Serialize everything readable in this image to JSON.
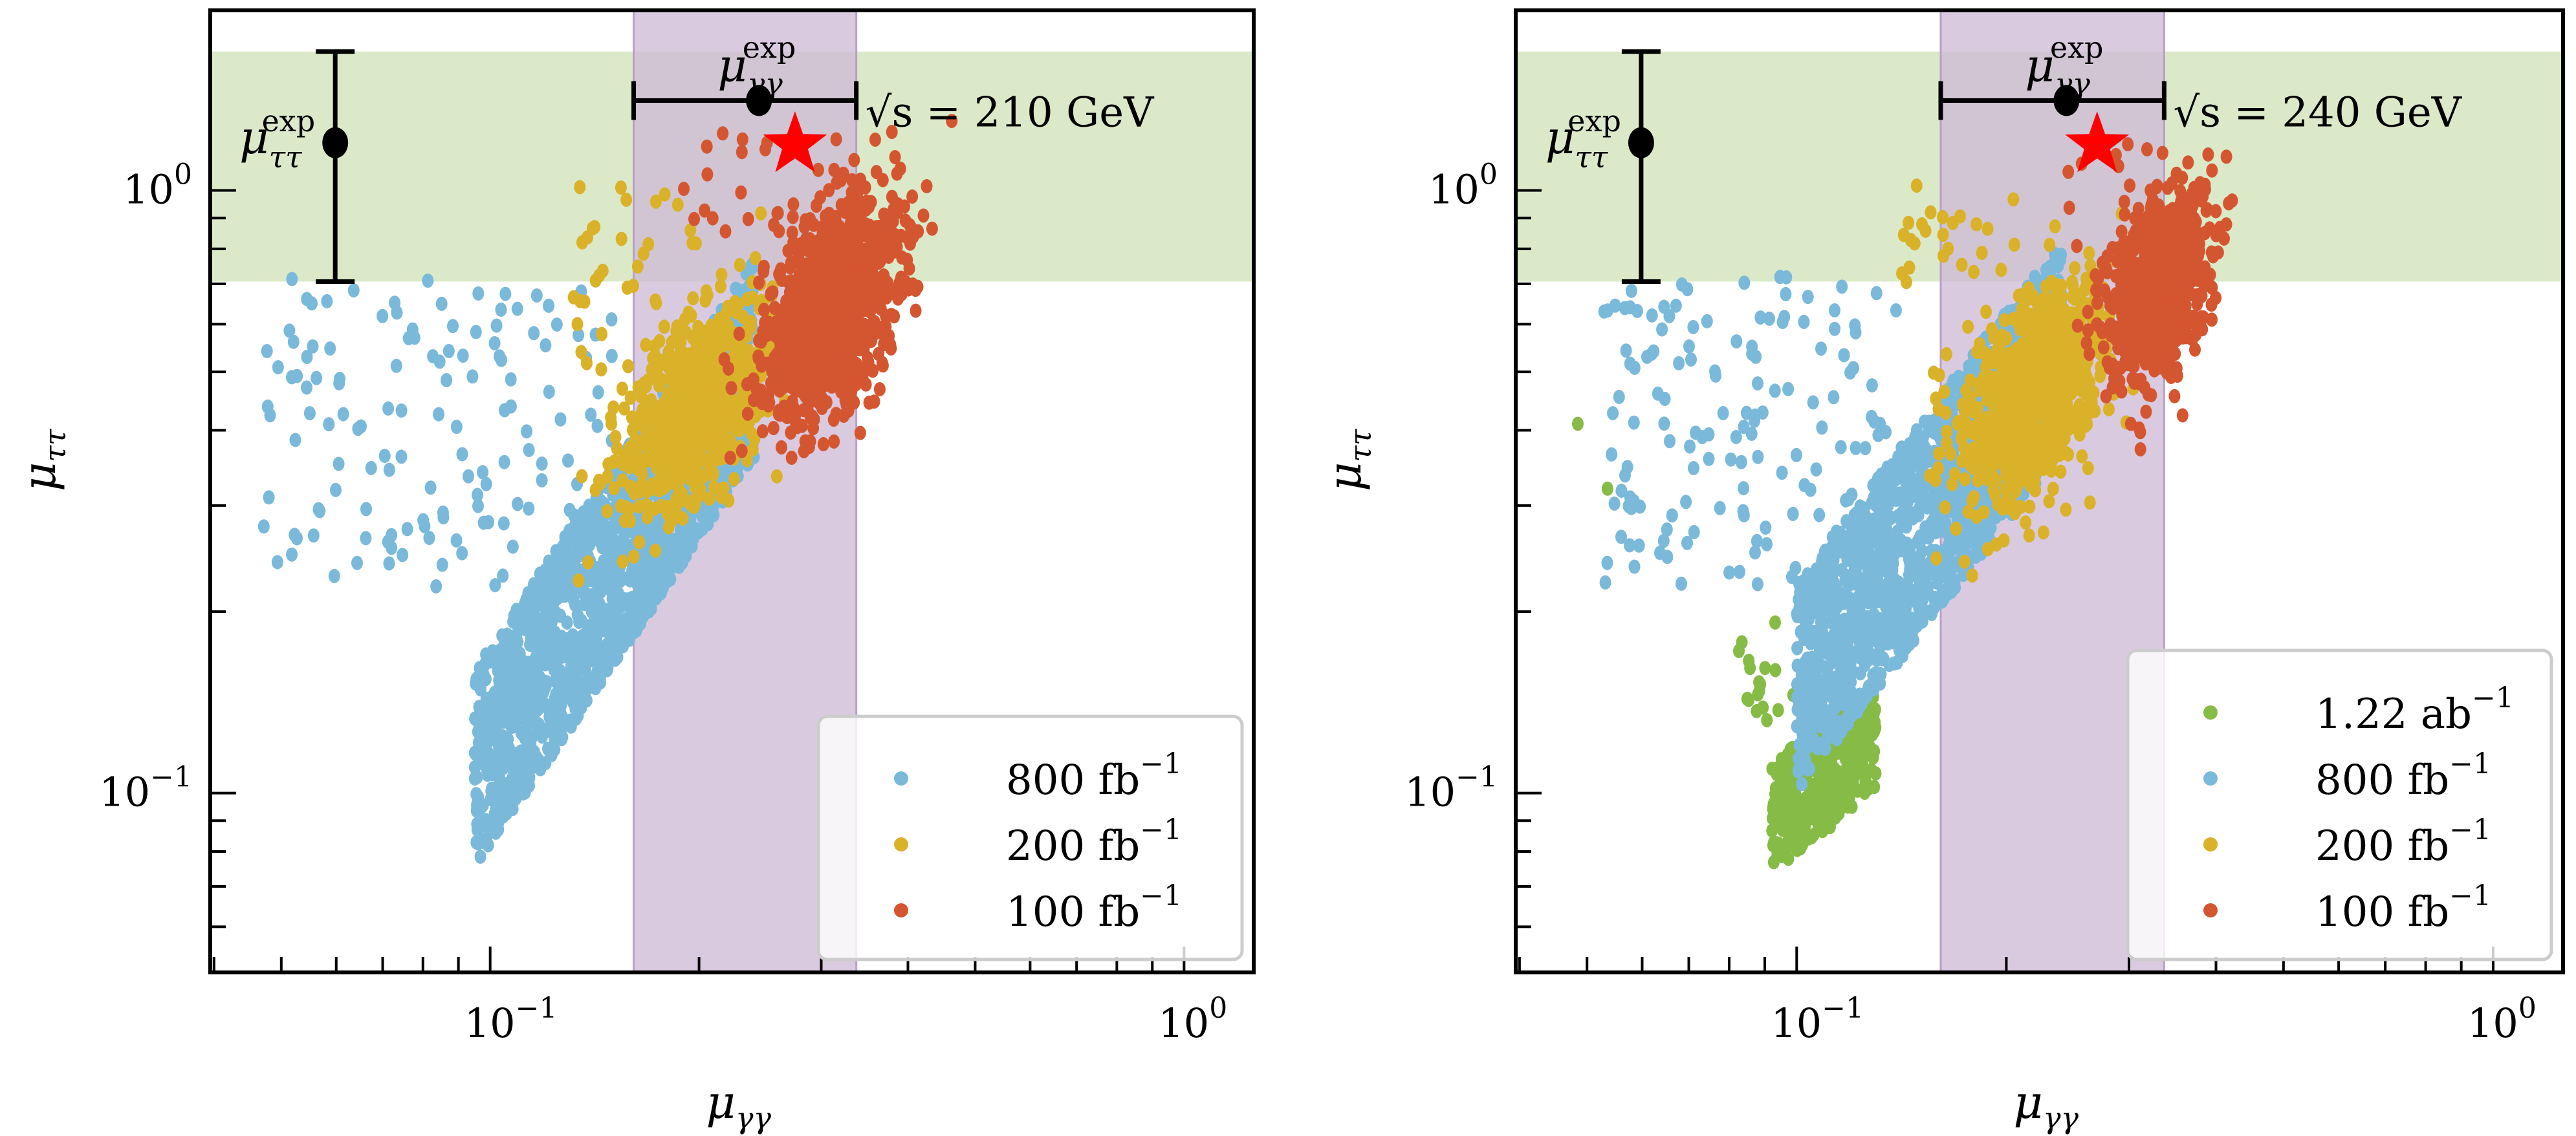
{
  "chart_data": [
    {
      "type": "scatter",
      "panel": "left",
      "xscale": "log",
      "yscale": "log",
      "xlim": [
        0.0395,
        1.26
      ],
      "ylim": [
        0.0504,
        1.99
      ],
      "xlabel": "μ",
      "xlabel_sub": "γγ",
      "ylabel": "μ",
      "ylabel_sub": "ττ",
      "xticks": [
        {
          "value": 0.1,
          "base": "10",
          "exp": "−1"
        },
        {
          "value": 1.0,
          "base": "10",
          "exp": "0"
        }
      ],
      "yticks": [
        {
          "value": 0.1,
          "base": "10",
          "exp": "−1"
        },
        {
          "value": 1.0,
          "base": "10",
          "exp": "0"
        }
      ],
      "annotation": {
        "text": "√s = 210 GeV",
        "root": "√",
        "rest": "s = 210 GeV"
      },
      "bands": {
        "mu_tautau": {
          "ymin": 0.706,
          "ymax": 1.7,
          "color": "#d9e8c6"
        },
        "mu_gammagamma": {
          "xmin": 0.161,
          "xmax": 0.337,
          "color": "#cdb8d6"
        }
      },
      "exp_points": {
        "mu_tautau": {
          "x": 0.0598,
          "y": 1.2,
          "ylo": 0.706,
          "yhi": 1.7,
          "label": "μ",
          "label_sub": "ττ",
          "label_sup": "exp"
        },
        "mu_gammagamma": {
          "x": 0.244,
          "y": 1.41,
          "xlo": 0.161,
          "xhi": 0.337,
          "label": "μ",
          "label_sub": "γγ",
          "label_sup": "exp"
        }
      },
      "star": {
        "x": 0.275,
        "y": 1.19,
        "color": "#ff0000"
      },
      "legend": {
        "placement": "lower-right"
      },
      "series": [
        {
          "name": "800 fb⁻¹",
          "label_num": "800 fb",
          "label_sup": "−1",
          "color": "#7ab9da",
          "clusters": [
            {
              "kind": "band",
              "x_range": [
                0.095,
                0.24
              ],
              "y_at_x": [
                [
                  0.095,
                  0.075
                ],
                [
                  0.24,
                  0.36
                ]
              ],
              "y_spread_dex": 0.33,
              "n": 1600
            },
            {
              "kind": "scatter",
              "x_range": [
                0.047,
                0.15
              ],
              "y_range": [
                0.22,
                0.72
              ],
              "n": 140
            }
          ]
        },
        {
          "name": "200 fb⁻¹",
          "label_num": "200 fb",
          "label_sup": "−1",
          "color": "#dab22a",
          "clusters": [
            {
              "kind": "blob",
              "x_center": 0.2,
              "y_center": 0.44,
              "x_sigma_dex": 0.09,
              "y_sigma_dex": 0.12,
              "n": 800
            },
            {
              "kind": "scatter",
              "x_range": [
                0.13,
                0.2
              ],
              "y_range": [
                0.5,
                1.05
              ],
              "n": 40
            }
          ]
        },
        {
          "name": "100 fb⁻¹",
          "label_num": "100 fb",
          "label_sup": "−1",
          "color": "#d45630",
          "clusters": [
            {
              "kind": "blob",
              "x_center": 0.31,
              "y_center": 0.64,
              "x_sigma_dex": 0.08,
              "y_sigma_dex": 0.13,
              "n": 1200
            },
            {
              "kind": "scatter",
              "x_range": [
                0.19,
                0.33
              ],
              "y_range": [
                0.85,
                1.25
              ],
              "n": 25
            }
          ]
        }
      ]
    },
    {
      "type": "scatter",
      "panel": "right",
      "xscale": "log",
      "yscale": "log",
      "xlim": [
        0.0395,
        1.26
      ],
      "ylim": [
        0.0504,
        1.99
      ],
      "xlabel": "μ",
      "xlabel_sub": "γγ",
      "ylabel": "μ",
      "ylabel_sub": "ττ",
      "xticks": [
        {
          "value": 0.1,
          "base": "10",
          "exp": "−1"
        },
        {
          "value": 1.0,
          "base": "10",
          "exp": "0"
        }
      ],
      "yticks": [
        {
          "value": 0.1,
          "base": "10",
          "exp": "−1"
        },
        {
          "value": 1.0,
          "base": "10",
          "exp": "0"
        }
      ],
      "annotation": {
        "text": "√s = 240 GeV",
        "root": "√",
        "rest": "s = 240 GeV"
      },
      "bands": {
        "mu_tautau": {
          "ymin": 0.706,
          "ymax": 1.7,
          "color": "#d9e8c6"
        },
        "mu_gammagamma": {
          "xmin": 0.161,
          "xmax": 0.337,
          "color": "#cdb8d6"
        }
      },
      "exp_points": {
        "mu_tautau": {
          "x": 0.0598,
          "y": 1.2,
          "ylo": 0.706,
          "yhi": 1.7,
          "label": "μ",
          "label_sub": "ττ",
          "label_sup": "exp"
        },
        "mu_gammagamma": {
          "x": 0.244,
          "y": 1.41,
          "xlo": 0.161,
          "xhi": 0.337,
          "label": "μ",
          "label_sub": "γγ",
          "label_sup": "exp"
        }
      },
      "star": {
        "x": 0.27,
        "y": 1.19,
        "color": "#ff0000"
      },
      "legend": {
        "placement": "lower-right"
      },
      "series": [
        {
          "name": "1.22 ab⁻¹",
          "label_num": "1.22 ab",
          "label_sup": "−1",
          "color": "#86bb45",
          "clusters": [
            {
              "kind": "band",
              "x_range": [
                0.092,
                0.13
              ],
              "y_at_x": [
                [
                  0.092,
                  0.074
                ],
                [
                  0.13,
                  0.1
                ]
              ],
              "y_spread_dex": 0.18,
              "n": 350
            },
            {
              "kind": "scatter",
              "x_range": [
                0.082,
                0.1
              ],
              "y_range": [
                0.13,
                0.22
              ],
              "n": 18
            },
            {
              "kind": "points",
              "xy": [
                [
                  0.0485,
                  0.41
                ],
                [
                  0.0535,
                  0.32
                ]
              ]
            }
          ]
        },
        {
          "name": "800 fb⁻¹",
          "label_num": "800 fb",
          "label_sup": "−1",
          "color": "#7ab9da",
          "clusters": [
            {
              "kind": "band",
              "x_range": [
                0.1,
                0.24
              ],
              "y_at_x": [
                [
                  0.1,
                  0.1
                ],
                [
                  0.24,
                  0.37
                ]
              ],
              "y_spread_dex": 0.35,
              "n": 1500
            },
            {
              "kind": "scatter",
              "x_range": [
                0.052,
                0.14
              ],
              "y_range": [
                0.22,
                0.72
              ],
              "n": 150
            }
          ]
        },
        {
          "name": "200 fb⁻¹",
          "label_num": "200 fb",
          "label_sup": "−1",
          "color": "#dab22a",
          "clusters": [
            {
              "kind": "blob",
              "x_center": 0.22,
              "y_center": 0.46,
              "x_sigma_dex": 0.085,
              "y_sigma_dex": 0.13,
              "n": 900
            },
            {
              "kind": "scatter",
              "x_range": [
                0.14,
                0.21
              ],
              "y_range": [
                0.7,
                1.05
              ],
              "n": 25
            }
          ]
        },
        {
          "name": "100 fb⁻¹",
          "label_num": "100 fb",
          "label_sup": "−1",
          "color": "#d45630",
          "clusters": [
            {
              "kind": "blob",
              "x_center": 0.33,
              "y_center": 0.7,
              "x_sigma_dex": 0.06,
              "y_sigma_dex": 0.12,
              "n": 800
            },
            {
              "kind": "scatter",
              "x_range": [
                0.24,
                0.33
              ],
              "y_range": [
                0.9,
                1.2
              ],
              "n": 12
            }
          ]
        }
      ]
    }
  ]
}
